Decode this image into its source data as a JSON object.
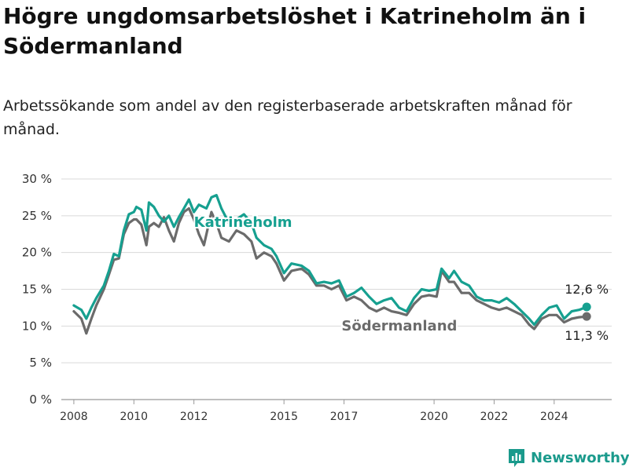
{
  "header": {
    "title": "Högre ungdomsarbetslöshet i Katrineholm än i Södermanland",
    "subtitle": "Arbetssökande som andel av den registerbaserade arbetskraften månad för månad."
  },
  "colors": {
    "katrineholm": "#16a090",
    "sodermanland": "#6b6b6b",
    "grid": "#d9d9d9",
    "brand": "#1a9a8c"
  },
  "brand": {
    "name": "Newsworthy",
    "icon": "newsworthy-bar-chart-icon"
  },
  "chart_data": {
    "type": "line",
    "ylim": [
      0,
      30
    ],
    "yticks": [
      0,
      5,
      10,
      15,
      20,
      25,
      30
    ],
    "ytick_labels": [
      "0 %",
      "5 %",
      "10 %",
      "15 %",
      "20 %",
      "25 %",
      "30 %"
    ],
    "xlim": [
      "2007-08",
      "2025-12"
    ],
    "xticks": [
      "2008-01",
      "2010-01",
      "2012-01",
      "2015-01",
      "2017-01",
      "2020-01",
      "2022-01",
      "2024-01"
    ],
    "xtick_labels": [
      "2008",
      "2010",
      "2012",
      "2015",
      "2017",
      "2020",
      "2022",
      "2024"
    ],
    "grid": true,
    "series": [
      {
        "name": "Katrineholm",
        "color": "#16a090",
        "end_label": "12,6 %",
        "points": [
          [
            "2008-01",
            12.8
          ],
          [
            "2008-04",
            12.2
          ],
          [
            "2008-06",
            11.0
          ],
          [
            "2008-08",
            12.5
          ],
          [
            "2008-10",
            13.8
          ],
          [
            "2009-01",
            15.5
          ],
          [
            "2009-03",
            17.5
          ],
          [
            "2009-05",
            19.8
          ],
          [
            "2009-07",
            19.5
          ],
          [
            "2009-09",
            23.0
          ],
          [
            "2009-11",
            25.2
          ],
          [
            "2010-01",
            25.5
          ],
          [
            "2010-02",
            26.2
          ],
          [
            "2010-04",
            25.8
          ],
          [
            "2010-06",
            23.0
          ],
          [
            "2010-07",
            26.8
          ],
          [
            "2010-09",
            26.2
          ],
          [
            "2010-11",
            25.0
          ],
          [
            "2011-01",
            24.2
          ],
          [
            "2011-03",
            25.0
          ],
          [
            "2011-05",
            23.5
          ],
          [
            "2011-07",
            24.8
          ],
          [
            "2011-09",
            26.0
          ],
          [
            "2011-11",
            27.2
          ],
          [
            "2012-01",
            25.5
          ],
          [
            "2012-03",
            26.5
          ],
          [
            "2012-06",
            26.0
          ],
          [
            "2012-08",
            27.5
          ],
          [
            "2012-10",
            27.8
          ],
          [
            "2012-12",
            26.0
          ],
          [
            "2013-03",
            24.0
          ],
          [
            "2013-06",
            24.5
          ],
          [
            "2013-09",
            25.2
          ],
          [
            "2013-12",
            24.0
          ],
          [
            "2014-02",
            22.0
          ],
          [
            "2014-05",
            21.0
          ],
          [
            "2014-08",
            20.5
          ],
          [
            "2014-10",
            19.5
          ],
          [
            "2015-01",
            17.2
          ],
          [
            "2015-04",
            18.5
          ],
          [
            "2015-08",
            18.2
          ],
          [
            "2015-11",
            17.5
          ],
          [
            "2016-02",
            15.8
          ],
          [
            "2016-05",
            16.0
          ],
          [
            "2016-08",
            15.8
          ],
          [
            "2016-11",
            16.2
          ],
          [
            "2017-02",
            14.0
          ],
          [
            "2017-05",
            14.5
          ],
          [
            "2017-08",
            15.2
          ],
          [
            "2017-11",
            14.0
          ],
          [
            "2018-02",
            13.0
          ],
          [
            "2018-05",
            13.5
          ],
          [
            "2018-08",
            13.8
          ],
          [
            "2018-11",
            12.5
          ],
          [
            "2019-02",
            12.0
          ],
          [
            "2019-05",
            13.8
          ],
          [
            "2019-08",
            15.0
          ],
          [
            "2019-11",
            14.8
          ],
          [
            "2020-02",
            15.0
          ],
          [
            "2020-04",
            17.8
          ],
          [
            "2020-07",
            16.5
          ],
          [
            "2020-09",
            17.5
          ],
          [
            "2020-12",
            16.0
          ],
          [
            "2021-03",
            15.5
          ],
          [
            "2021-06",
            14.0
          ],
          [
            "2021-09",
            13.5
          ],
          [
            "2021-12",
            13.5
          ],
          [
            "2022-03",
            13.2
          ],
          [
            "2022-06",
            13.8
          ],
          [
            "2022-09",
            13.0
          ],
          [
            "2022-12",
            12.0
          ],
          [
            "2023-03",
            11.0
          ],
          [
            "2023-05",
            10.2
          ],
          [
            "2023-08",
            11.5
          ],
          [
            "2023-11",
            12.5
          ],
          [
            "2024-02",
            12.8
          ],
          [
            "2024-05",
            11.0
          ],
          [
            "2024-08",
            12.0
          ],
          [
            "2024-11",
            12.2
          ],
          [
            "2025-02",
            12.6
          ]
        ]
      },
      {
        "name": "Södermanland",
        "color": "#6b6b6b",
        "end_label": "11,3 %",
        "points": [
          [
            "2008-01",
            12.0
          ],
          [
            "2008-04",
            11.0
          ],
          [
            "2008-06",
            9.0
          ],
          [
            "2008-08",
            11.0
          ],
          [
            "2008-10",
            12.8
          ],
          [
            "2009-01",
            15.0
          ],
          [
            "2009-03",
            17.0
          ],
          [
            "2009-05",
            19.0
          ],
          [
            "2009-07",
            19.2
          ],
          [
            "2009-09",
            22.5
          ],
          [
            "2009-11",
            24.0
          ],
          [
            "2010-01",
            24.5
          ],
          [
            "2010-02",
            24.5
          ],
          [
            "2010-04",
            23.8
          ],
          [
            "2010-06",
            21.0
          ],
          [
            "2010-07",
            23.5
          ],
          [
            "2010-09",
            24.0
          ],
          [
            "2010-11",
            23.5
          ],
          [
            "2011-01",
            24.8
          ],
          [
            "2011-03",
            23.0
          ],
          [
            "2011-05",
            21.5
          ],
          [
            "2011-07",
            24.0
          ],
          [
            "2011-09",
            25.5
          ],
          [
            "2011-11",
            26.0
          ],
          [
            "2012-01",
            24.5
          ],
          [
            "2012-03",
            22.5
          ],
          [
            "2012-05",
            21.0
          ],
          [
            "2012-08",
            25.5
          ],
          [
            "2012-10",
            24.0
          ],
          [
            "2012-12",
            22.0
          ],
          [
            "2013-03",
            21.5
          ],
          [
            "2013-06",
            23.0
          ],
          [
            "2013-09",
            22.5
          ],
          [
            "2013-12",
            21.5
          ],
          [
            "2014-02",
            19.2
          ],
          [
            "2014-05",
            20.0
          ],
          [
            "2014-08",
            19.5
          ],
          [
            "2014-10",
            18.5
          ],
          [
            "2015-01",
            16.2
          ],
          [
            "2015-04",
            17.5
          ],
          [
            "2015-08",
            17.8
          ],
          [
            "2015-11",
            17.0
          ],
          [
            "2016-02",
            15.5
          ],
          [
            "2016-05",
            15.5
          ],
          [
            "2016-08",
            15.0
          ],
          [
            "2016-11",
            15.5
          ],
          [
            "2017-02",
            13.5
          ],
          [
            "2017-05",
            14.0
          ],
          [
            "2017-08",
            13.5
          ],
          [
            "2017-11",
            12.5
          ],
          [
            "2018-02",
            12.0
          ],
          [
            "2018-05",
            12.5
          ],
          [
            "2018-08",
            12.0
          ],
          [
            "2018-11",
            11.8
          ],
          [
            "2019-02",
            11.5
          ],
          [
            "2019-05",
            13.0
          ],
          [
            "2019-08",
            14.0
          ],
          [
            "2019-11",
            14.2
          ],
          [
            "2020-02",
            14.0
          ],
          [
            "2020-04",
            17.5
          ],
          [
            "2020-07",
            16.0
          ],
          [
            "2020-09",
            16.0
          ],
          [
            "2020-12",
            14.5
          ],
          [
            "2021-03",
            14.5
          ],
          [
            "2021-06",
            13.5
          ],
          [
            "2021-09",
            13.0
          ],
          [
            "2021-12",
            12.5
          ],
          [
            "2022-03",
            12.2
          ],
          [
            "2022-06",
            12.5
          ],
          [
            "2022-09",
            12.0
          ],
          [
            "2022-12",
            11.5
          ],
          [
            "2023-03",
            10.2
          ],
          [
            "2023-05",
            9.6
          ],
          [
            "2023-08",
            11.0
          ],
          [
            "2023-11",
            11.5
          ],
          [
            "2024-02",
            11.5
          ],
          [
            "2024-05",
            10.5
          ],
          [
            "2024-08",
            11.0
          ],
          [
            "2024-11",
            11.2
          ],
          [
            "2025-02",
            11.3
          ]
        ]
      }
    ]
  }
}
